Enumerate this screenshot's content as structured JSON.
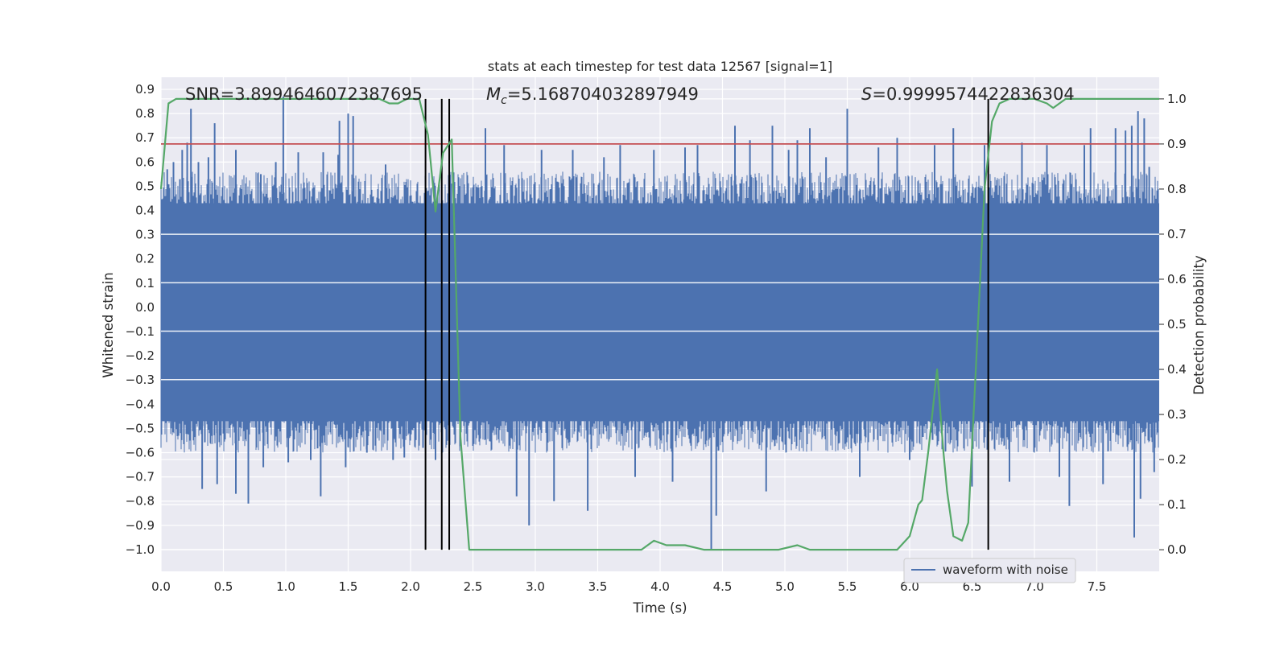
{
  "chart_data": {
    "type": "line",
    "title": "stats at each timestep for test data 12567 [signal=1]",
    "xlabel": "Time (s)",
    "ylabel": "Whitened strain",
    "y2label": "Detection probability",
    "xlim": [
      0.0,
      8.0
    ],
    "ylim": [
      -1.09,
      0.95
    ],
    "y2lim": [
      -0.048,
      1.048
    ],
    "xticks": [
      "0.0",
      "0.5",
      "1.0",
      "1.5",
      "2.0",
      "2.5",
      "3.0",
      "3.5",
      "4.0",
      "4.5",
      "5.0",
      "5.5",
      "6.0",
      "6.5",
      "7.0",
      "7.5"
    ],
    "yticks": [
      "0.9",
      "0.8",
      "0.7",
      "0.6",
      "0.5",
      "0.4",
      "0.3",
      "0.2",
      "0.1",
      "0.0",
      "−0.1",
      "−0.2",
      "−0.3",
      "−0.4",
      "−0.5",
      "−0.6",
      "−0.7",
      "−0.8",
      "−0.9",
      "−1.0"
    ],
    "y2ticks": [
      "1.0",
      "0.9",
      "0.8",
      "0.7",
      "0.6",
      "0.5",
      "0.4",
      "0.3",
      "0.2",
      "0.1",
      "0.0"
    ],
    "grid": true,
    "legend": {
      "position": "lower-center-right",
      "entries": [
        "waveform with noise"
      ]
    },
    "annotations": {
      "snr": "SNR=3.8994646072387695",
      "mc_symbol": "M",
      "mc_sub": "c",
      "mc_value": "=5.168704032897949",
      "s_symbol": "S",
      "s_value": "=0.9999574422836304"
    },
    "threshold": {
      "y2": 0.9,
      "color": "#c44e52"
    },
    "event_lines_x": [
      2.12,
      2.25,
      2.31,
      6.63
    ],
    "colors": {
      "waveform": "#4c72b0",
      "probability": "#55a868",
      "threshold": "#c44e52",
      "event": "#000000",
      "background": "#eaeaf2"
    },
    "waveform_spikes": [
      {
        "x": 0.02,
        "y": 0.45
      },
      {
        "x": 0.05,
        "y": 0.57
      },
      {
        "x": 0.08,
        "y": -0.5
      },
      {
        "x": 0.1,
        "y": 0.6
      },
      {
        "x": 0.14,
        "y": -0.53
      },
      {
        "x": 0.17,
        "y": 0.65
      },
      {
        "x": 0.21,
        "y": 0.68
      },
      {
        "x": 0.23,
        "y": -0.55
      },
      {
        "x": 0.24,
        "y": 0.82
      },
      {
        "x": 0.3,
        "y": 0.6
      },
      {
        "x": 0.33,
        "y": -0.75
      },
      {
        "x": 0.38,
        "y": 0.62
      },
      {
        "x": 0.43,
        "y": 0.76
      },
      {
        "x": 0.45,
        "y": -0.73
      },
      {
        "x": 0.6,
        "y": 0.65
      },
      {
        "x": 0.6,
        "y": -0.77
      },
      {
        "x": 0.7,
        "y": -0.81
      },
      {
        "x": 0.8,
        "y": 0.55
      },
      {
        "x": 0.82,
        "y": -0.66
      },
      {
        "x": 0.92,
        "y": 0.6
      },
      {
        "x": 0.98,
        "y": 0.87
      },
      {
        "x": 1.02,
        "y": -0.64
      },
      {
        "x": 1.1,
        "y": 0.64
      },
      {
        "x": 1.2,
        "y": -0.63
      },
      {
        "x": 1.28,
        "y": -0.78
      },
      {
        "x": 1.3,
        "y": 0.64
      },
      {
        "x": 1.42,
        "y": 0.63
      },
      {
        "x": 1.43,
        "y": 0.77
      },
      {
        "x": 1.48,
        "y": -0.66
      },
      {
        "x": 1.5,
        "y": 0.8
      },
      {
        "x": 1.54,
        "y": 0.79
      },
      {
        "x": 1.65,
        "y": -0.6
      },
      {
        "x": 1.8,
        "y": 0.59
      },
      {
        "x": 1.86,
        "y": -0.63
      },
      {
        "x": 1.95,
        "y": -0.62
      },
      {
        "x": 2.1,
        "y": -0.58
      },
      {
        "x": 2.2,
        "y": -0.63
      },
      {
        "x": 2.6,
        "y": 0.74
      },
      {
        "x": 2.75,
        "y": 0.67
      },
      {
        "x": 2.85,
        "y": -0.78
      },
      {
        "x": 2.95,
        "y": -0.9
      },
      {
        "x": 3.05,
        "y": 0.65
      },
      {
        "x": 3.15,
        "y": -0.8
      },
      {
        "x": 3.3,
        "y": 0.65
      },
      {
        "x": 3.42,
        "y": -0.84
      },
      {
        "x": 3.55,
        "y": 0.62
      },
      {
        "x": 3.68,
        "y": 0.67
      },
      {
        "x": 3.8,
        "y": -0.7
      },
      {
        "x": 3.95,
        "y": 0.65
      },
      {
        "x": 4.1,
        "y": -0.72
      },
      {
        "x": 4.2,
        "y": 0.66
      },
      {
        "x": 4.3,
        "y": 0.67
      },
      {
        "x": 4.41,
        "y": -1.0
      },
      {
        "x": 4.45,
        "y": -0.86
      },
      {
        "x": 4.6,
        "y": 0.75
      },
      {
        "x": 4.72,
        "y": 0.69
      },
      {
        "x": 4.85,
        "y": -0.76
      },
      {
        "x": 4.9,
        "y": 0.75
      },
      {
        "x": 5.03,
        "y": 0.65
      },
      {
        "x": 5.1,
        "y": 0.69
      },
      {
        "x": 5.2,
        "y": 0.74
      },
      {
        "x": 5.33,
        "y": 0.62
      },
      {
        "x": 5.5,
        "y": 0.82
      },
      {
        "x": 5.6,
        "y": -0.7
      },
      {
        "x": 5.75,
        "y": 0.66
      },
      {
        "x": 5.9,
        "y": 0.7
      },
      {
        "x": 6.0,
        "y": -0.63
      },
      {
        "x": 6.2,
        "y": 0.67
      },
      {
        "x": 6.35,
        "y": 0.74
      },
      {
        "x": 6.5,
        "y": -0.74
      },
      {
        "x": 6.6,
        "y": 0.67
      },
      {
        "x": 6.8,
        "y": -0.72
      },
      {
        "x": 6.9,
        "y": 0.68
      },
      {
        "x": 7.1,
        "y": 0.67
      },
      {
        "x": 7.2,
        "y": -0.7
      },
      {
        "x": 7.28,
        "y": -0.82
      },
      {
        "x": 7.4,
        "y": 0.67
      },
      {
        "x": 7.45,
        "y": 0.74
      },
      {
        "x": 7.55,
        "y": -0.73
      },
      {
        "x": 7.65,
        "y": 0.74
      },
      {
        "x": 7.73,
        "y": 0.73
      },
      {
        "x": 7.78,
        "y": 0.75
      },
      {
        "x": 7.8,
        "y": -0.95
      },
      {
        "x": 7.83,
        "y": 0.81
      },
      {
        "x": 7.85,
        "y": -0.79
      },
      {
        "x": 7.88,
        "y": 0.78
      },
      {
        "x": 7.92,
        "y": 0.58
      },
      {
        "x": 7.96,
        "y": -0.68
      }
    ],
    "series": [
      {
        "name": "waveform with noise",
        "envelope_upper": 0.43,
        "envelope_lower": -0.47
      },
      {
        "axis": "y2",
        "x": [
          0.0,
          0.06,
          0.12,
          0.3,
          0.6,
          1.0,
          1.5,
          1.75,
          1.83,
          1.9,
          1.97,
          2.07,
          2.14,
          2.2,
          2.26,
          2.33,
          2.4,
          2.47,
          2.55,
          2.7,
          3.0,
          3.3,
          3.6,
          3.85,
          3.95,
          4.05,
          4.2,
          4.35,
          4.45,
          4.65,
          4.85,
          4.95,
          5.1,
          5.2,
          5.4,
          5.7,
          5.9,
          6.0,
          6.07,
          6.1,
          6.15,
          6.22,
          6.27,
          6.3,
          6.35,
          6.42,
          6.47,
          6.53,
          6.6,
          6.66,
          6.72,
          6.8,
          6.9,
          7.0,
          7.1,
          7.15,
          7.25,
          7.5,
          7.7,
          8.0
        ],
        "y": [
          0.8,
          0.99,
          1.0,
          1.0,
          1.0,
          1.0,
          1.0,
          1.0,
          0.99,
          0.99,
          1.0,
          1.0,
          0.92,
          0.75,
          0.88,
          0.91,
          0.25,
          0.0,
          0.0,
          0.0,
          0.0,
          0.0,
          0.0,
          0.0,
          0.02,
          0.01,
          0.01,
          0.0,
          0.0,
          0.0,
          0.0,
          0.0,
          0.01,
          0.0,
          0.0,
          0.0,
          0.0,
          0.03,
          0.1,
          0.11,
          0.22,
          0.4,
          0.22,
          0.13,
          0.03,
          0.02,
          0.06,
          0.4,
          0.8,
          0.95,
          0.99,
          1.0,
          1.0,
          1.0,
          0.99,
          0.98,
          1.0,
          1.0,
          1.0,
          1.0
        ]
      }
    ]
  }
}
